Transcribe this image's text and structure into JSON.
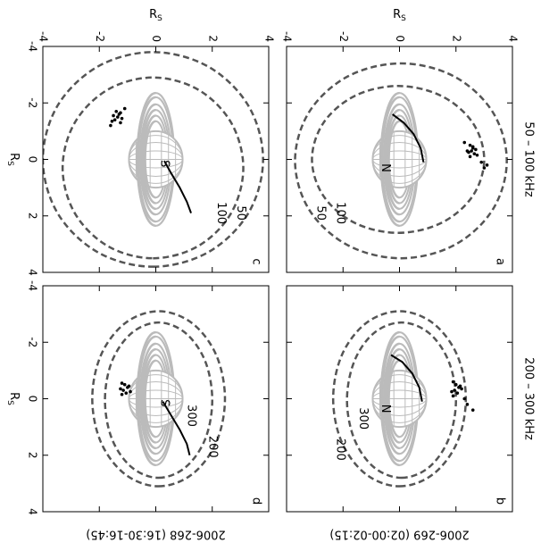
{
  "chart_data": {
    "type": "scatter",
    "xlabel": {
      "text": "R",
      "sub": "S"
    },
    "ylabel": {
      "text": "R",
      "sub": "S"
    },
    "xlim": [
      -4,
      4
    ],
    "ylim": [
      -4,
      4
    ],
    "xticks": [
      -4,
      -2,
      0,
      2,
      4
    ],
    "yticks": [
      -4,
      -2,
      0,
      2,
      4
    ],
    "column_titles": [
      "50 – 100 kHz",
      "200 – 300 kHz"
    ],
    "row_titles": [
      "2006-269 (02:00-02:15)",
      "2006-268 (16:30-16:45)"
    ],
    "contour_color": "#555555",
    "source_color": "#000000",
    "field_line_color": "#000000",
    "panels": [
      {
        "label": "a",
        "pole": "N",
        "contours": [
          {
            "label": "50",
            "x": [
              3.5,
              3.04,
              1.78,
              0.05,
              -1.68,
              -2.94,
              -3.4,
              -2.94,
              -1.68,
              0.05,
              1.78,
              3.04
            ],
            "y": [
              0.05,
              1.93,
              3.3,
              3.8,
              3.3,
              1.93,
              0.05,
              -1.83,
              -3.2,
              -3.7,
              -3.2,
              -1.83
            ]
          },
          {
            "label": "100",
            "x": [
              2.6,
              2.25,
              1.3,
              0,
              -1.3,
              -2.25,
              -2.6,
              -2.25,
              -1.3,
              0,
              1.3,
              2.25
            ],
            "y": [
              -0.05,
              1.48,
              2.59,
              3.0,
              2.59,
              1.48,
              -0.05,
              -1.58,
              -2.69,
              -3.1,
              -2.69,
              -1.58
            ]
          }
        ],
        "sources": {
          "x": [
            -0.5,
            -0.4,
            -0.3,
            -0.2,
            -0.1,
            -0.35,
            -0.25,
            -0.45,
            -0.15,
            -0.3,
            0.1,
            -0.6,
            0.3,
            0.2
          ],
          "y": [
            2.5,
            2.6,
            2.55,
            2.65,
            2.5,
            2.7,
            2.45,
            2.6,
            2.75,
            2.4,
            2.9,
            2.3,
            3.0,
            3.1
          ]
        },
        "field_line": {
          "x": [
            0.1,
            -0.4,
            -0.9,
            -1.3,
            -1.6
          ],
          "y": [
            0.85,
            0.75,
            0.5,
            0.15,
            -0.25
          ]
        }
      },
      {
        "label": "b",
        "pole": "N",
        "contours": [
          {
            "label": "200",
            "x": [
              3.1,
              2.68,
              1.55,
              0,
              -1.55,
              -2.68,
              -3.1,
              -2.68,
              -1.55,
              0,
              1.55,
              2.68
            ],
            "y": [
              0,
              1.18,
              2.04,
              2.35,
              2.04,
              1.18,
              0,
              -1.18,
              -2.04,
              -2.35,
              -2.04,
              -1.18
            ]
          },
          {
            "label": "300",
            "x": [
              2.8,
              2.43,
              1.43,
              0.05,
              -1.33,
              -2.33,
              -2.7,
              -2.33,
              -1.33,
              0.05,
              1.43,
              2.43
            ],
            "y": [
              0.07,
              1.04,
              1.74,
              2.0,
              1.74,
              1.04,
              0.07,
              -0.9,
              -1.6,
              -1.86,
              -1.6,
              -0.9
            ]
          }
        ],
        "sources": {
          "x": [
            -0.6,
            -0.5,
            -0.4,
            -0.3,
            -0.2,
            -0.1,
            -0.35,
            -0.25,
            -0.45,
            0.0,
            0.2,
            0.4
          ],
          "y": [
            1.9,
            2.0,
            2.1,
            1.95,
            2.05,
            1.9,
            2.2,
            1.85,
            2.15,
            2.3,
            2.4,
            2.6
          ]
        },
        "field_line": {
          "x": [
            0.1,
            -0.4,
            -0.9,
            -1.3,
            -1.55
          ],
          "y": [
            0.8,
            0.7,
            0.45,
            0.1,
            -0.3
          ]
        }
      },
      {
        "label": "c",
        "pole": "S",
        "contours": [
          {
            "label": "50",
            "x": [
              3.8,
              3.29,
              1.9,
              0,
              -1.9,
              -3.29,
              -3.8,
              -3.29,
              -1.9,
              0,
              1.9,
              3.29
            ],
            "y": [
              -0.1,
              1.85,
              3.28,
              3.8,
              3.28,
              1.85,
              -0.1,
              -2.05,
              -3.48,
              -4.0,
              -3.48,
              -2.05
            ]
          },
          {
            "label": "100",
            "x": [
              3.5,
              3.07,
              1.9,
              0.3,
              -1.3,
              -2.47,
              -2.9,
              -2.47,
              -1.3,
              0.3,
              1.9,
              3.07
            ],
            "y": [
              -0.1,
              1.5,
              2.67,
              3.1,
              2.67,
              1.5,
              -0.1,
              -1.7,
              -2.87,
              -3.3,
              -2.87,
              -1.7
            ]
          }
        ],
        "sources": {
          "x": [
            -1.7,
            -1.6,
            -1.5,
            -1.4,
            -1.3,
            -1.55,
            -1.45,
            -1.65,
            -1.35,
            -1.8,
            -1.2
          ],
          "y": [
            -1.4,
            -1.3,
            -1.35,
            -1.45,
            -1.25,
            -1.5,
            -1.2,
            -1.25,
            -1.55,
            -1.1,
            -1.6
          ]
        },
        "field_line": {
          "x": [
            0.05,
            0.5,
            1.0,
            1.5,
            1.9
          ],
          "y": [
            0.3,
            0.55,
            0.85,
            1.1,
            1.25
          ]
        }
      },
      {
        "label": "d",
        "pole": "S",
        "contours": [
          {
            "label": "200",
            "x": [
              3.1,
              2.68,
              1.55,
              0,
              -1.55,
              -2.68,
              -3.1,
              -2.68,
              -1.55,
              0,
              1.55,
              2.68
            ],
            "y": [
              0.1,
              1.28,
              2.14,
              2.45,
              2.14,
              1.28,
              0.1,
              -1.08,
              -1.94,
              -2.25,
              -1.94,
              -1.08
            ]
          },
          {
            "label": "300",
            "x": [
              2.8,
              2.43,
              1.43,
              0.05,
              -1.33,
              -2.33,
              -2.7,
              -2.33,
              -1.33,
              0.05,
              1.43,
              2.43
            ],
            "y": [
              0.1,
              1.05,
              1.75,
              2.0,
              1.75,
              1.05,
              0.1,
              -0.85,
              -1.55,
              -1.8,
              -1.55,
              -0.85
            ]
          }
        ],
        "sources": {
          "x": [
            -0.5,
            -0.4,
            -0.3,
            -0.2,
            -0.35,
            -0.45,
            -0.25,
            -0.15,
            -0.55
          ],
          "y": [
            -1.1,
            -1.0,
            -1.15,
            -1.05,
            -1.25,
            -0.95,
            -0.9,
            -1.2,
            -1.2
          ]
        },
        "field_line": {
          "x": [
            0.1,
            0.6,
            1.1,
            1.6,
            2.0
          ],
          "y": [
            0.25,
            0.55,
            0.85,
            1.1,
            1.2
          ]
        }
      }
    ]
  }
}
